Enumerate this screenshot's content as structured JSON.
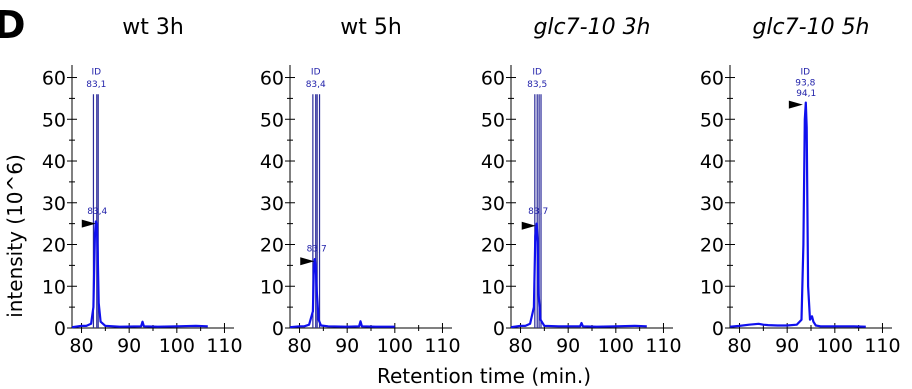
{
  "panel_label": "D",
  "ylabel": "intensity (10^6)",
  "xlabel": "Retention time (min.)",
  "colors": {
    "trace": "#1010ee",
    "peak_line": "#2a2a9a",
    "label_text": "#2222aa",
    "axis": "#000000"
  },
  "chart_data": [
    {
      "type": "line",
      "title": "wt 3h",
      "title_italic": false,
      "xlim": [
        78,
        112
      ],
      "ylim": [
        0,
        63
      ],
      "xticks": [
        80,
        90,
        100,
        110
      ],
      "yticks": [
        0,
        10,
        20,
        30,
        40,
        50,
        60
      ],
      "peak_lines": [
        82.5,
        83.2,
        83.5
      ],
      "annotations": [
        {
          "label": "ID",
          "x": 83.1,
          "y": 61.5
        },
        {
          "label": "83,1",
          "x": 83.1,
          "y": 58.5
        },
        {
          "label": "83,4",
          "x": 83.3,
          "y": 28.0
        }
      ],
      "arrow": {
        "x": 83.2,
        "y": 25.0
      },
      "series": [
        {
          "x": [
            78,
            80,
            81,
            82,
            82.5,
            82.8,
            83.0,
            83.2,
            83.4,
            83.6,
            84.0,
            85,
            88,
            92.5,
            92.8,
            93.1,
            96,
            100,
            104,
            106.5
          ],
          "y": [
            0.2,
            0.5,
            0.5,
            1.0,
            5,
            22,
            25.5,
            25,
            18,
            6,
            1.5,
            0.5,
            0.3,
            0.4,
            1.5,
            0.4,
            0.3,
            0.4,
            0.5,
            0.4
          ]
        }
      ]
    },
    {
      "type": "line",
      "title": "wt 5h",
      "title_italic": false,
      "xlim": [
        78,
        112
      ],
      "ylim": [
        0,
        63
      ],
      "xticks": [
        80,
        90,
        100,
        110
      ],
      "yticks": [
        0,
        10,
        20,
        30,
        40,
        50,
        60
      ],
      "peak_lines": [
        82.8,
        83.4,
        83.7,
        84.2
      ],
      "annotations": [
        {
          "label": "ID",
          "x": 83.4,
          "y": 61.5
        },
        {
          "label": "83,4",
          "x": 83.4,
          "y": 58.5
        },
        {
          "label": "83,7",
          "x": 83.6,
          "y": 19.0
        }
      ],
      "arrow": {
        "x": 83.3,
        "y": 16.0
      },
      "series": [
        {
          "x": [
            78,
            80,
            81,
            82,
            82.8,
            83.0,
            83.2,
            83.4,
            83.6,
            84.0,
            84.5,
            86,
            90,
            92.5,
            92.8,
            93.1,
            96,
            100
          ],
          "y": [
            0.2,
            0.4,
            0.4,
            0.8,
            4,
            14,
            16.5,
            15,
            9,
            2,
            0.6,
            0.4,
            0.3,
            0.4,
            1.6,
            0.4,
            0.3,
            0.3
          ]
        }
      ]
    },
    {
      "type": "line",
      "title": "glc7-10 3h",
      "title_italic": true,
      "xlim": [
        78,
        112
      ],
      "ylim": [
        0,
        63
      ],
      "xticks": [
        80,
        90,
        100,
        110
      ],
      "yticks": [
        0,
        10,
        20,
        30,
        40,
        50,
        60
      ],
      "peak_lines": [
        83.0,
        83.5,
        83.9,
        84.3
      ],
      "annotations": [
        {
          "label": "ID",
          "x": 83.5,
          "y": 61.5
        },
        {
          "label": "83,5",
          "x": 83.5,
          "y": 58.5
        },
        {
          "label": "83,7",
          "x": 83.7,
          "y": 28.0
        }
      ],
      "arrow": {
        "x": 83.4,
        "y": 24.5
      },
      "series": [
        {
          "x": [
            78,
            80,
            81,
            82,
            82.8,
            83.1,
            83.4,
            83.6,
            83.8,
            84.2,
            85,
            88,
            92.5,
            92.8,
            93.1,
            96,
            100,
            104,
            106.5
          ],
          "y": [
            0.2,
            0.5,
            0.5,
            1.0,
            5,
            22,
            25,
            20,
            8,
            2,
            0.5,
            0.4,
            0.4,
            1.2,
            0.4,
            0.3,
            0.4,
            0.5,
            0.4
          ]
        }
      ]
    },
    {
      "type": "line",
      "title": "glc7-10 5h",
      "title_italic": true,
      "xlim": [
        78,
        112
      ],
      "ylim": [
        0,
        63
      ],
      "xticks": [
        80,
        90,
        100,
        110
      ],
      "yticks": [
        0,
        10,
        20,
        30,
        40,
        50,
        60
      ],
      "peak_lines": [],
      "annotations": [
        {
          "label": "ID",
          "x": 93.8,
          "y": 61.5
        },
        {
          "label": "93,8",
          "x": 93.8,
          "y": 58.8
        },
        {
          "label": "94,1",
          "x": 94.0,
          "y": 56.3
        }
      ],
      "arrow": {
        "x": 93.5,
        "y": 53.5
      },
      "series": [
        {
          "x": [
            78,
            80,
            82,
            84,
            85,
            86,
            88,
            90,
            92,
            93.0,
            93.4,
            93.7,
            93.9,
            94.1,
            94.4,
            94.8,
            95.2,
            95.5,
            96.0,
            97,
            100,
            104,
            106.5
          ],
          "y": [
            0.3,
            0.5,
            0.8,
            1.0,
            0.8,
            0.7,
            0.6,
            0.6,
            0.8,
            2,
            20,
            50,
            54,
            48,
            10,
            2,
            2.8,
            1.5,
            0.6,
            0.4,
            0.4,
            0.4,
            0.3
          ]
        }
      ]
    }
  ]
}
